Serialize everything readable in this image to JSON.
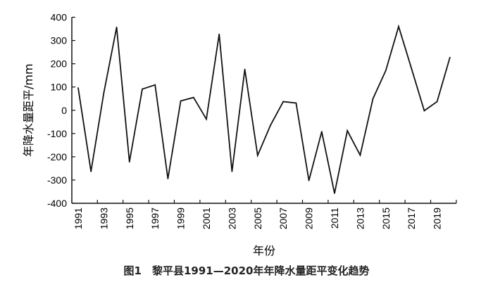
{
  "chart_data": {
    "type": "line",
    "title": "",
    "caption": "图1　黎平县1991—2020年年降水量距平变化趋势",
    "xlabel": "年份",
    "ylabel": "年降水量距平/mm",
    "ylim": [
      -400,
      400
    ],
    "yticks": [
      400,
      300,
      200,
      100,
      0,
      -100,
      -200,
      -300,
      -400
    ],
    "xtick_labels": [
      "1991",
      "1993",
      "1995",
      "1997",
      "1999",
      "2001",
      "2003",
      "2005",
      "2007",
      "2009",
      "2011",
      "2013",
      "2015",
      "2017",
      "2019"
    ],
    "grid": false,
    "x": [
      1991,
      1992,
      1993,
      1994,
      1995,
      1996,
      1997,
      1998,
      1999,
      2000,
      2001,
      2002,
      2003,
      2004,
      2005,
      2006,
      2007,
      2008,
      2009,
      2010,
      2011,
      2012,
      2013,
      2014,
      2015,
      2016,
      2017,
      2018,
      2019,
      2020
    ],
    "values": [
      96,
      -263,
      75,
      357,
      -222,
      91,
      109,
      -294,
      40,
      55,
      -38,
      327,
      -263,
      176,
      -194,
      -65,
      37,
      31,
      -302,
      -92,
      -357,
      -88,
      -193,
      50,
      171,
      360,
      180,
      -2,
      37,
      227
    ],
    "line_color": "#111111"
  }
}
